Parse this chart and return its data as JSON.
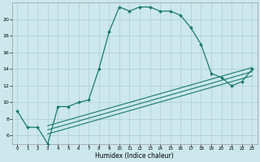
{
  "xlabel": "Humidex (Indice chaleur)",
  "ylabel": "",
  "bg_color": "#cce8ec",
  "line_color": "#1a7a6e",
  "grid_color": "#aacdd4",
  "main_x": [
    0,
    1,
    2,
    3,
    4,
    5,
    6,
    7,
    8,
    9,
    10,
    11,
    12,
    13,
    14,
    15,
    16,
    17,
    18,
    19,
    20,
    21,
    22,
    23
  ],
  "main_y": [
    9,
    7,
    7,
    5,
    9.5,
    9.5,
    10,
    10.3,
    14,
    18.5,
    21.5,
    21.0,
    21.5,
    21.5,
    21.0,
    21.0,
    20.5,
    19.0,
    17.0,
    13.5,
    13.0,
    12.0,
    12.5,
    14.0
  ],
  "line2_x": [
    3,
    23
  ],
  "line2_y": [
    6.2,
    13.2
  ],
  "line3_x": [
    3,
    23
  ],
  "line3_y": [
    6.7,
    13.7
  ],
  "line4_x": [
    3,
    23
  ],
  "line4_y": [
    7.2,
    14.2
  ],
  "xlim": [
    -0.5,
    23.5
  ],
  "ylim": [
    5.0,
    22.0
  ],
  "xticks": [
    0,
    1,
    2,
    3,
    4,
    5,
    6,
    7,
    8,
    9,
    10,
    11,
    12,
    13,
    14,
    15,
    16,
    17,
    18,
    19,
    20,
    21,
    22,
    23
  ],
  "yticks": [
    6,
    8,
    10,
    12,
    14,
    16,
    18,
    20
  ]
}
